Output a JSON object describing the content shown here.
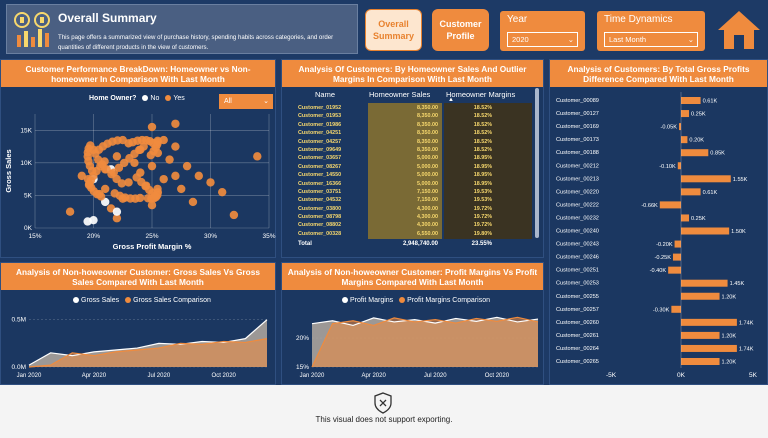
{
  "header": {
    "title": "Overall Summary",
    "description": "This page offers a summarized view of  purchase history, spending habits across categories, and order quantities of different products in the view of customers.",
    "nav_overall": "Overall Summary",
    "nav_profile": "Customer Profile"
  },
  "slicers": {
    "year_label": "Year",
    "year_value": "2020",
    "time_label": "Time Dynamics",
    "time_value": "Last Month"
  },
  "scatter_panel": {
    "title": "Customer Performance BreakDown: Homeowner vs Non-homeowner In Comparison With Last Month",
    "legend_title": "Home Owner?",
    "legend_no": "No",
    "legend_yes": "Yes",
    "filter_value": "All"
  },
  "table_panel": {
    "title": "Analysis Of Customers: By Homeowner Sales And Outlier Margins In Comparison With Last Month",
    "col_name": "Name",
    "col_sales": "Homeowner Sales",
    "col_margins": "Homeowner Margins",
    "rows": [
      [
        "Customer_01952",
        "8,350.00",
        "18.52%"
      ],
      [
        "Customer_01953",
        "8,350.00",
        "18.52%"
      ],
      [
        "Customer_01986",
        "8,350.00",
        "18.52%"
      ],
      [
        "Customer_04251",
        "8,350.00",
        "18.52%"
      ],
      [
        "Customer_04257",
        "8,350.00",
        "18.52%"
      ],
      [
        "Customer_09649",
        "8,350.00",
        "18.52%"
      ],
      [
        "Customer_03657",
        "5,000.00",
        "18.95%"
      ],
      [
        "Customer_08267",
        "5,000.00",
        "18.95%"
      ],
      [
        "Customer_14550",
        "5,000.00",
        "18.95%"
      ],
      [
        "Customer_16366",
        "5,000.00",
        "18.95%"
      ],
      [
        "Customer_03751",
        "7,150.00",
        "19.53%"
      ],
      [
        "Customer_04532",
        "7,150.00",
        "19.53%"
      ],
      [
        "Customer_03800",
        "4,300.00",
        "19.72%"
      ],
      [
        "Customer_08798",
        "4,300.00",
        "19.72%"
      ],
      [
        "Customer_08802",
        "4,300.00",
        "19.72%"
      ],
      [
        "Customer_00328",
        "6,550.00",
        "19.80%"
      ]
    ],
    "total_label": "Total",
    "total_sales": "2,948,740.00",
    "total_margins": "23.55%"
  },
  "bar_panel": {
    "title": "Analysis of Customers: By Total Gross Profits Difference Compared With Last Month"
  },
  "area1_panel": {
    "title": "Analysis of Non-howeowner Customer: Gross Sales Vs Gross Sales Compared With Last Month",
    "legend_a": "Gross Sales",
    "legend_b": "Gross Sales Comparison"
  },
  "area2_panel": {
    "title": "Analysis of Non-howeowner Customer: Profit Margins Vs Profit Margins Compared With Last Month",
    "legend_a": "Profit Margins",
    "legend_b": "Profit Margins Comparison"
  },
  "export_message": "This visual does not support exporting.",
  "colors": {
    "navy": "#1d3a66",
    "orange": "#ef8b3e",
    "gold": "#f7d86d"
  },
  "chart_data": [
    {
      "type": "scatter",
      "title": "Customer Performance BreakDown: Homeowner vs Non-homeowner In Comparison With Last Month",
      "xlabel": "Gross Profit Margin %",
      "ylabel": "Gross Sales",
      "xlim": [
        0.15,
        0.35
      ],
      "ylim": [
        0,
        17500
      ],
      "x_ticks": [
        "15%",
        "20%",
        "25%",
        "30%",
        "35%"
      ],
      "y_ticks": [
        "0K",
        "5K",
        "10K",
        "15K"
      ],
      "series": [
        {
          "name": "Yes",
          "points": [
            [
              0.18,
              2500
            ],
            [
              0.19,
              8000
            ],
            [
              0.205,
              5200
            ],
            [
              0.21,
              6000
            ],
            [
              0.21,
              9000
            ],
            [
              0.215,
              3000
            ],
            [
              0.22,
              11000
            ],
            [
              0.225,
              4500
            ],
            [
              0.23,
              7000
            ],
            [
              0.23,
              13000
            ],
            [
              0.235,
              10000
            ],
            [
              0.24,
              8500
            ],
            [
              0.24,
              12000
            ],
            [
              0.245,
              6500
            ],
            [
              0.25,
              15500
            ],
            [
              0.25,
              9500
            ],
            [
              0.255,
              11500
            ],
            [
              0.26,
              7500
            ],
            [
              0.26,
              13500
            ],
            [
              0.265,
              10500
            ],
            [
              0.27,
              8000
            ],
            [
              0.27,
              12500
            ],
            [
              0.275,
              6000
            ],
            [
              0.28,
              9500
            ],
            [
              0.285,
              4000
            ],
            [
              0.29,
              8000
            ],
            [
              0.3,
              7000
            ],
            [
              0.31,
              5500
            ],
            [
              0.27,
              16000
            ],
            [
              0.2,
              12000
            ],
            [
              0.32,
              2000
            ],
            [
              0.22,
              1500
            ],
            [
              0.34,
              11000
            ],
            [
              0.25,
              3500
            ]
          ]
        },
        {
          "name": "No",
          "points": [
            [
              0.195,
              1000
            ],
            [
              0.2,
              1200
            ],
            [
              0.21,
              4000
            ],
            [
              0.2,
              7500
            ],
            [
              0.215,
              9000
            ],
            [
              0.22,
              2500
            ]
          ]
        }
      ]
    },
    {
      "type": "bar",
      "title": "Analysis of Customers: By Total Gross Profits Difference Compared With Last Month",
      "categories": [
        "Customer_00089",
        "Customer_00127",
        "Customer_00169",
        "Customer_00173",
        "Customer_00188",
        "Customer_00212",
        "Customer_00213",
        "Customer_00220",
        "Customer_00222",
        "Customer_00232",
        "Customer_00240",
        "Customer_00243",
        "Customer_00246",
        "Customer_00251",
        "Customer_00253",
        "Customer_00255",
        "Customer_00257",
        "Customer_00260",
        "Customer_00261",
        "Customer_00264",
        "Customer_00265"
      ],
      "values": [
        610,
        250,
        -50,
        200,
        850,
        -100,
        1550,
        610,
        -660,
        250,
        1500,
        -200,
        -250,
        -400,
        1450,
        1200,
        -300,
        1740,
        1200,
        1740,
        1200
      ],
      "value_labels": [
        "0.61K",
        "0.25K",
        "-0.05K",
        "0.20K",
        "0.85K",
        "-0.10K",
        "1.55K",
        "0.61K",
        "-0.66K",
        "0.25K",
        "1.50K",
        "-0.20K",
        "-0.25K",
        "-0.40K",
        "1.45K",
        "1.20K",
        "-0.30K",
        "1.74K",
        "1.20K",
        "1.74K",
        "1.20K"
      ],
      "xlim": [
        -5000,
        5000
      ],
      "x_ticks": [
        "-5K",
        "0K",
        "5K"
      ]
    },
    {
      "type": "area",
      "title": "Analysis of Non-howeowner Customer: Gross Sales Vs Gross Sales Compared With Last Month",
      "x": [
        "Jan 2020",
        "Feb 2020",
        "Mar 2020",
        "Apr 2020",
        "May 2020",
        "Jun 2020",
        "Jul 2020",
        "Aug 2020",
        "Sep 2020",
        "Oct 2020",
        "Nov 2020",
        "Dec 2020"
      ],
      "x_ticks": [
        "Jan 2020",
        "Apr 2020",
        "Jul 2020",
        "Oct 2020"
      ],
      "y_ticks": [
        "0.0M",
        "0.5M"
      ],
      "series": [
        {
          "name": "Gross Sales",
          "values": [
            0.02,
            0.15,
            0.12,
            0.16,
            0.18,
            0.2,
            0.25,
            0.24,
            0.27,
            0.26,
            0.3,
            0.5
          ]
        },
        {
          "name": "Gross Sales Comparison",
          "values": [
            0.0,
            0.02,
            0.15,
            0.12,
            0.16,
            0.18,
            0.2,
            0.25,
            0.24,
            0.27,
            0.26,
            0.3
          ]
        }
      ]
    },
    {
      "type": "area",
      "title": "Analysis of Non-howeowner Customer: Profit Margins Vs Profit Margins Compared With Last Month",
      "x": [
        "Jan 2020",
        "Feb 2020",
        "Mar 2020",
        "Apr 2020",
        "May 2020",
        "Jun 2020",
        "Jul 2020",
        "Aug 2020",
        "Sep 2020",
        "Oct 2020",
        "Nov 2020",
        "Dec 2020"
      ],
      "x_ticks": [
        "Jan 2020",
        "Apr 2020",
        "Jul 2020",
        "Oct 2020"
      ],
      "y_ticks": [
        "15%",
        "20%"
      ],
      "series": [
        {
          "name": "Profit Margins",
          "values": [
            0.225,
            0.23,
            0.222,
            0.235,
            0.228,
            0.232,
            0.226,
            0.234,
            0.229,
            0.236,
            0.228,
            0.233
          ]
        },
        {
          "name": "Profit Margins Comparison",
          "values": [
            0.15,
            0.225,
            0.23,
            0.222,
            0.235,
            0.228,
            0.232,
            0.226,
            0.234,
            0.229,
            0.236,
            0.228
          ]
        }
      ]
    }
  ]
}
